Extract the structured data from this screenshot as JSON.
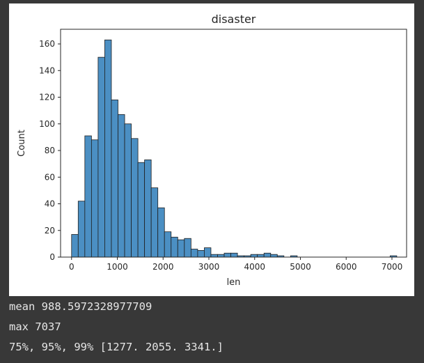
{
  "chart_data": {
    "type": "bar",
    "title": "disaster",
    "xlabel": "len",
    "ylabel": "Count",
    "xlim": [
      -240,
      7320
    ],
    "ylim": [
      0,
      171
    ],
    "bin_width": 145,
    "xticks": [
      0,
      1000,
      2000,
      3000,
      4000,
      5000,
      6000,
      7000
    ],
    "yticks": [
      0,
      20,
      40,
      60,
      80,
      100,
      120,
      140,
      160
    ],
    "grid": false,
    "bar_color": "#4b8fc3",
    "series": [
      {
        "bins": [
          {
            "x": 0,
            "count": 17
          },
          {
            "x": 145,
            "count": 42
          },
          {
            "x": 290,
            "count": 91
          },
          {
            "x": 435,
            "count": 88
          },
          {
            "x": 580,
            "count": 150
          },
          {
            "x": 725,
            "count": 163
          },
          {
            "x": 870,
            "count": 118
          },
          {
            "x": 1015,
            "count": 107
          },
          {
            "x": 1160,
            "count": 100
          },
          {
            "x": 1305,
            "count": 89
          },
          {
            "x": 1450,
            "count": 71
          },
          {
            "x": 1595,
            "count": 73
          },
          {
            "x": 1740,
            "count": 52
          },
          {
            "x": 1885,
            "count": 37
          },
          {
            "x": 2030,
            "count": 19
          },
          {
            "x": 2175,
            "count": 15
          },
          {
            "x": 2320,
            "count": 13
          },
          {
            "x": 2465,
            "count": 14
          },
          {
            "x": 2610,
            "count": 6
          },
          {
            "x": 2755,
            "count": 5
          },
          {
            "x": 2900,
            "count": 7
          },
          {
            "x": 3045,
            "count": 2
          },
          {
            "x": 3190,
            "count": 2
          },
          {
            "x": 3335,
            "count": 3
          },
          {
            "x": 3480,
            "count": 3
          },
          {
            "x": 3625,
            "count": 1
          },
          {
            "x": 3770,
            "count": 1
          },
          {
            "x": 3915,
            "count": 2
          },
          {
            "x": 4060,
            "count": 2
          },
          {
            "x": 4205,
            "count": 3
          },
          {
            "x": 4350,
            "count": 2
          },
          {
            "x": 4495,
            "count": 1
          },
          {
            "x": 4785,
            "count": 1
          },
          {
            "x": 6960,
            "count": 1
          }
        ]
      }
    ]
  },
  "output": {
    "line1": "mean 988.5972328977709",
    "line2": "max 7037",
    "line3": "75%, 95%, 99% [1277. 2055. 3341.]"
  }
}
